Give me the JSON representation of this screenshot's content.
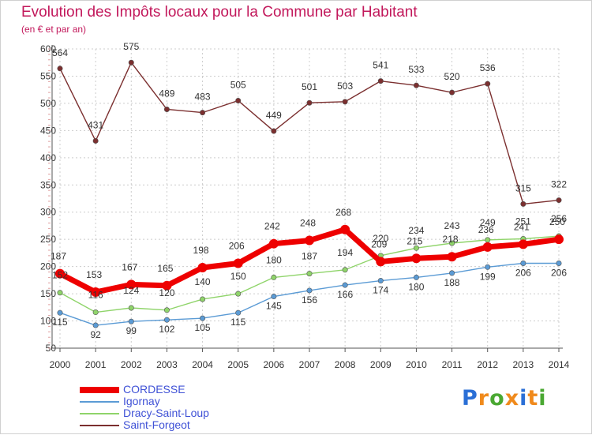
{
  "title": "Evolution des Impôts locaux pour la Commune par Habitant",
  "subtitle": "(en € et par an)",
  "brand": {
    "letters": [
      "P",
      "r",
      "o",
      "x",
      "i",
      "t",
      "i"
    ],
    "colors": [
      "#2a6fd6",
      "#f08a1c",
      "#4aa832",
      "#f08a1c",
      "#2a6fd6",
      "#f08a1c",
      "#4aa832"
    ]
  },
  "chart_data": {
    "type": "line",
    "x": [
      2000,
      2001,
      2002,
      2003,
      2004,
      2005,
      2006,
      2007,
      2008,
      2009,
      2010,
      2011,
      2012,
      2013,
      2014
    ],
    "ylim": [
      50,
      600
    ],
    "yticks": [
      50,
      100,
      150,
      200,
      250,
      300,
      350,
      400,
      450,
      500,
      550,
      600
    ],
    "grid": true,
    "legend_position": "bottom-left",
    "series": [
      {
        "name": "CORDESSE",
        "color": "#ee0000",
        "values": [
          187,
          153,
          167,
          165,
          198,
          206,
          242,
          248,
          268,
          209,
          215,
          218,
          236,
          241,
          250
        ],
        "labels": [
          "187",
          "153",
          "167",
          "165",
          "198",
          "206",
          "242",
          "248",
          "268",
          "209",
          "215",
          "218",
          "236",
          "241",
          "250"
        ]
      },
      {
        "name": "Igornay",
        "color": "#5b9bd5",
        "values": [
          115,
          92,
          99,
          102,
          105,
          115,
          145,
          156,
          166,
          174,
          180,
          188,
          199,
          206,
          206
        ],
        "labels": [
          "115",
          "92",
          "99",
          "102",
          "105",
          "115",
          "145",
          "156",
          "166",
          "174",
          "180",
          "188",
          "199",
          "206",
          "206"
        ]
      },
      {
        "name": "Dracy-Saint-Loup",
        "color": "#8fd46a",
        "values": [
          152,
          116,
          124,
          120,
          140,
          150,
          180,
          187,
          194,
          220,
          234,
          243,
          249,
          251,
          256
        ],
        "labels": [
          "152",
          "116",
          "124",
          "120",
          "140",
          "150",
          "180",
          "187",
          "194",
          "220",
          "234",
          "243",
          "249",
          "251",
          "256"
        ]
      },
      {
        "name": "Saint-Forgeot",
        "color": "#7b2f2f",
        "values": [
          564,
          431,
          575,
          489,
          483,
          505,
          449,
          501,
          503,
          541,
          533,
          520,
          536,
          315,
          322
        ],
        "labels": [
          "564",
          "431",
          "575",
          "489",
          "483",
          "505",
          "449",
          "501",
          "503",
          "541",
          "533",
          "520",
          "536",
          "315",
          "322"
        ]
      }
    ]
  }
}
